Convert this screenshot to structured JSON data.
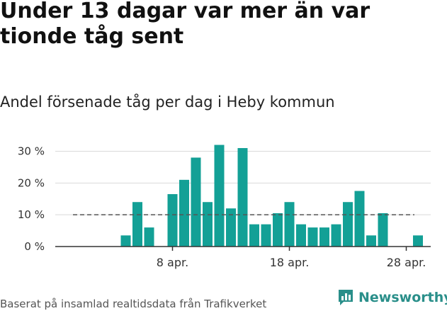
{
  "title": "Under 13 dagar var mer än var tionde tåg sent",
  "subtitle": "Andel försenade tåg per dag i Heby kommun",
  "source": "Baserat på insamlad realtidsdata från Trafikverket",
  "brand": "Newsworthy",
  "colors": {
    "bar": "#13a096",
    "grid": "#d9d9d9",
    "reference": "#555555",
    "brand": "#2a8f8a"
  },
  "chart_data": {
    "type": "bar",
    "x": [
      "31 mars",
      "1 apr.",
      "2 apr.",
      "3 apr.",
      "4 apr.",
      "5 apr.",
      "6 apr.",
      "7 apr.",
      "8 apr.",
      "9 apr.",
      "10 apr.",
      "11 apr.",
      "12 apr.",
      "13 apr.",
      "14 apr.",
      "15 apr.",
      "16 apr.",
      "17 apr.",
      "18 apr.",
      "19 apr.",
      "20 apr.",
      "21 apr.",
      "22 apr.",
      "23 apr.",
      "24 apr.",
      "25 apr.",
      "26 apr.",
      "27 apr.",
      "28 apr.",
      "29 apr."
    ],
    "values": [
      null,
      null,
      null,
      null,
      3.5,
      14,
      6,
      null,
      16.5,
      21,
      28,
      14,
      32,
      12,
      31,
      7,
      7,
      10.5,
      14,
      7,
      6,
      6,
      7,
      14,
      17.5,
      3.5,
      10.5,
      null,
      null,
      3.5
    ],
    "y_ticks": [
      "0 %",
      "10 %",
      "20 %",
      "30 %"
    ],
    "y_tick_values": [
      0,
      10,
      20,
      30
    ],
    "x_ticks": [
      "8 apr.",
      "18 apr.",
      "28 apr."
    ],
    "x_tick_values": [
      "8 apr.",
      "18 apr.",
      "28 apr."
    ],
    "ylim": [
      0,
      32
    ],
    "reference_line": 10,
    "grid": true,
    "xlabel": "",
    "ylabel": ""
  }
}
